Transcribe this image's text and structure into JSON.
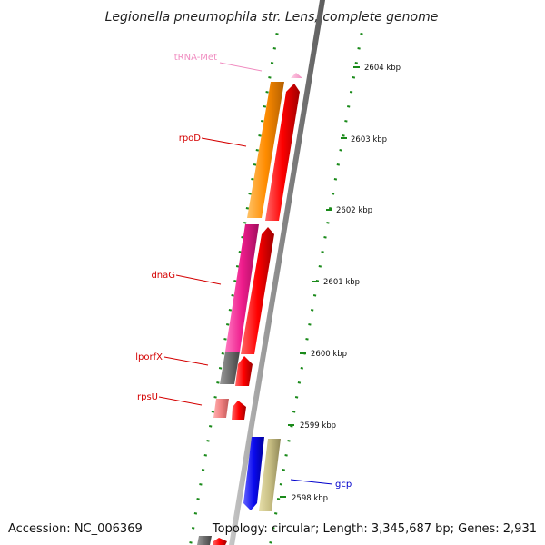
{
  "title": "Legionella pneumophila str. Lens, complete genome",
  "accession": "Accession: NC_006369",
  "summary": "Topology: circular; Length: 3,345,687 bp; Genes: 2,931",
  "scale_labels": [
    "2604 kbp",
    "2603 kbp",
    "2602 kbp",
    "2601 kbp",
    "2600 kbp",
    "2599 kbp",
    "2598 kbp"
  ],
  "genes": [
    {
      "name": "tRNA-Met",
      "color": "#f4a0c8"
    },
    {
      "name": "rpoD",
      "color": "#d40000"
    },
    {
      "name": "dnaG",
      "color": "#d40000"
    },
    {
      "name": "lporfX",
      "color": "#d40000"
    },
    {
      "name": "rpsU",
      "color": "#d40000"
    },
    {
      "name": "gcp",
      "color": "#0000cc"
    }
  ],
  "colors": {
    "cds": "#ff0000",
    "trna": "#f4a6cf",
    "cog_orange": "#ff8c00",
    "cog_magenta": "#ee1c8c",
    "cog_grey": "#6e6e6e",
    "cog_salmon": "#f08080",
    "cog_khaki": "#c8bf84",
    "cds_blue": "#0a0aee",
    "backbone": "#8c8c8c",
    "tick": "#1a8a1a"
  }
}
